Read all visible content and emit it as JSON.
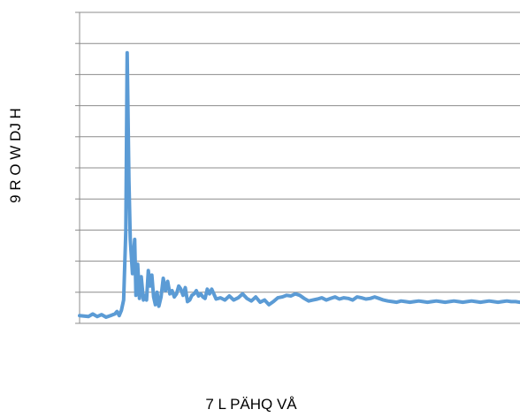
{
  "chart_data": {
    "type": "line",
    "title": "",
    "xlabel": "7 L PÄHQ VÅ",
    "ylabel": "9 R O W DJ H",
    "grid": true,
    "legend": "none",
    "line_color": "#5b9bd5",
    "grid_color": "#8c8c8c",
    "ylim": [
      0,
      10
    ],
    "xlim": [
      0,
      1000
    ],
    "series": [
      {
        "x": [
          0,
          20,
          30,
          40,
          50,
          60,
          70,
          80,
          85,
          90,
          95,
          100,
          105,
          108,
          112,
          115,
          120,
          125,
          128,
          132,
          136,
          140,
          145,
          148,
          152,
          156,
          160,
          164,
          168,
          172,
          176,
          180,
          185,
          190,
          195,
          200,
          205,
          210,
          215,
          220,
          225,
          230,
          235,
          240,
          245,
          250,
          255,
          260,
          265,
          270,
          275,
          280,
          285,
          290,
          295,
          300,
          310,
          320,
          330,
          340,
          350,
          360,
          370,
          380,
          390,
          400,
          410,
          420,
          430,
          440,
          450,
          460,
          470,
          480,
          490,
          500,
          510,
          520,
          530,
          540,
          550,
          560,
          570,
          580,
          590,
          600,
          610,
          620,
          630,
          640,
          650,
          660,
          670,
          680,
          690,
          700,
          710,
          720,
          730,
          740,
          750,
          760,
          770,
          780,
          790,
          800,
          810,
          820,
          830,
          840,
          850,
          860,
          870,
          880,
          890,
          900,
          910,
          920,
          930,
          940,
          950,
          960,
          970,
          980,
          990,
          1000
        ],
        "values": [
          0.25,
          0.22,
          0.3,
          0.22,
          0.28,
          0.2,
          0.25,
          0.3,
          0.38,
          0.25,
          0.42,
          0.75,
          3.0,
          8.7,
          4.6,
          2.7,
          1.6,
          2.7,
          0.9,
          1.9,
          0.8,
          1.5,
          0.75,
          0.9,
          0.75,
          1.7,
          1.2,
          1.55,
          0.85,
          0.6,
          1.0,
          0.55,
          0.85,
          1.45,
          1.05,
          1.35,
          0.95,
          1.05,
          0.85,
          0.95,
          1.2,
          1.1,
          0.9,
          1.15,
          0.7,
          0.75,
          0.9,
          0.95,
          1.05,
          0.88,
          0.95,
          0.85,
          0.8,
          1.1,
          0.95,
          1.1,
          0.78,
          0.82,
          0.75,
          0.88,
          0.75,
          0.82,
          0.95,
          0.8,
          0.72,
          0.85,
          0.68,
          0.75,
          0.6,
          0.7,
          0.82,
          0.85,
          0.9,
          0.88,
          0.95,
          0.9,
          0.8,
          0.72,
          0.75,
          0.78,
          0.82,
          0.75,
          0.8,
          0.85,
          0.78,
          0.82,
          0.8,
          0.75,
          0.85,
          0.82,
          0.78,
          0.8,
          0.85,
          0.8,
          0.75,
          0.72,
          0.7,
          0.68,
          0.72,
          0.7,
          0.68,
          0.7,
          0.72,
          0.7,
          0.68,
          0.7,
          0.72,
          0.7,
          0.68,
          0.7,
          0.72,
          0.7,
          0.68,
          0.7,
          0.72,
          0.7,
          0.68,
          0.7,
          0.72,
          0.7,
          0.68,
          0.7,
          0.72,
          0.7,
          0.7,
          0.68
        ]
      }
    ]
  }
}
